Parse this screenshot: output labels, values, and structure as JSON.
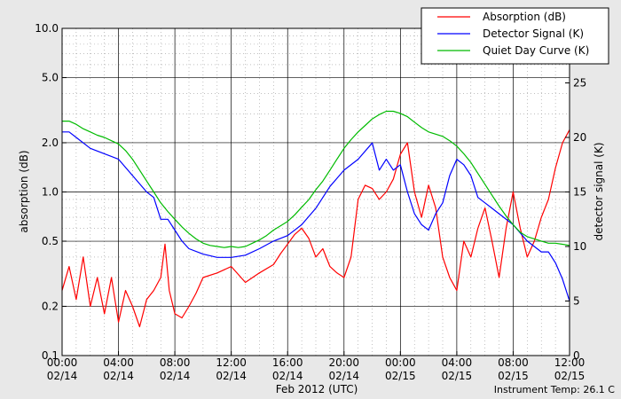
{
  "chart_data": {
    "type": "line",
    "xlabel": "Feb 2012 (UTC)",
    "ylabel_left": "absorption (dB)",
    "ylabel_right": "detector signal (K)",
    "left_scale": "log",
    "left_ylim": [
      0.1,
      10.0
    ],
    "right_ylim": [
      0,
      30
    ],
    "left_ticks": [
      "0.1",
      "0.2",
      "0.5",
      "1.0",
      "2.0",
      "5.0",
      "10.0"
    ],
    "left_tick_values": [
      0.1,
      0.2,
      0.5,
      1.0,
      2.0,
      5.0,
      10.0
    ],
    "right_ticks": [
      "0",
      "5",
      "10",
      "15",
      "20",
      "25"
    ],
    "right_tick_values": [
      0,
      5,
      10,
      15,
      20,
      25
    ],
    "x_range_hours": [
      0,
      36
    ],
    "x_ticks": [
      {
        "hour": 0,
        "time": "00:00",
        "date": "02/14"
      },
      {
        "hour": 4,
        "time": "04:00",
        "date": "02/14"
      },
      {
        "hour": 8,
        "time": "08:00",
        "date": "02/14"
      },
      {
        "hour": 12,
        "time": "12:00",
        "date": "02/14"
      },
      {
        "hour": 16,
        "time": "16:00",
        "date": "02/14"
      },
      {
        "hour": 20,
        "time": "20:00",
        "date": "02/14"
      },
      {
        "hour": 24,
        "time": "00:00",
        "date": "02/15"
      },
      {
        "hour": 28,
        "time": "04:00",
        "date": "02/15"
      },
      {
        "hour": 32,
        "time": "08:00",
        "date": "02/15"
      },
      {
        "hour": 36,
        "time": "12:00",
        "date": "02/15"
      }
    ],
    "grid": true,
    "legend_position": "top-right",
    "annotation": "Instrument Temp: 26.1 C",
    "series": [
      {
        "name": "Absorption (dB)",
        "color": "#ff0000",
        "axis": "left",
        "x": [
          0,
          0.5,
          1,
          1.5,
          2,
          2.5,
          3,
          3.5,
          4,
          4.5,
          5,
          5.5,
          6,
          6.5,
          7,
          7.3,
          7.6,
          8,
          8.5,
          9,
          9.5,
          10,
          11,
          12,
          13,
          14,
          15,
          15.5,
          16,
          16.5,
          17,
          17.5,
          18,
          18.5,
          19,
          19.5,
          20,
          20.5,
          21,
          21.5,
          22,
          22.5,
          23,
          23.5,
          24,
          24.5,
          25,
          25.5,
          26,
          26.5,
          27,
          27.5,
          28,
          28.5,
          29,
          29.5,
          30,
          30.5,
          31,
          31.5,
          32,
          32.5,
          33,
          33.5,
          34,
          34.5,
          35,
          35.5,
          36
        ],
        "y": [
          0.25,
          0.35,
          0.22,
          0.4,
          0.2,
          0.3,
          0.18,
          0.3,
          0.16,
          0.25,
          0.2,
          0.15,
          0.22,
          0.25,
          0.3,
          0.48,
          0.25,
          0.18,
          0.17,
          0.2,
          0.24,
          0.3,
          0.32,
          0.35,
          0.28,
          0.32,
          0.36,
          0.42,
          0.48,
          0.55,
          0.6,
          0.52,
          0.4,
          0.45,
          0.35,
          0.32,
          0.3,
          0.4,
          0.9,
          1.1,
          1.05,
          0.9,
          1.0,
          1.2,
          1.7,
          2.0,
          1.0,
          0.7,
          1.1,
          0.8,
          0.4,
          0.3,
          0.25,
          0.5,
          0.4,
          0.6,
          0.8,
          0.5,
          0.3,
          0.6,
          1.0,
          0.6,
          0.4,
          0.5,
          0.7,
          0.9,
          1.4,
          2.0,
          2.4
        ]
      },
      {
        "name": "Detector Signal (K)",
        "color": "#0000ff",
        "axis": "right",
        "x": [
          0,
          0.5,
          1,
          2,
          3,
          4,
          5,
          6,
          6.5,
          7,
          7.5,
          8,
          8.5,
          9,
          10,
          11,
          12,
          13,
          14,
          15,
          16,
          17,
          18,
          19,
          20,
          21,
          22,
          22.5,
          23,
          23.5,
          24,
          24.5,
          25,
          25.5,
          26,
          26.5,
          27,
          27.5,
          28,
          28.5,
          29,
          29.5,
          30,
          30.5,
          31,
          32,
          33,
          34,
          34.5,
          35,
          35.5,
          36
        ],
        "y": [
          20.5,
          20.5,
          20,
          19,
          18.5,
          18,
          16.5,
          15,
          14.5,
          12.5,
          12.5,
          11.5,
          10.5,
          9.8,
          9.3,
          9.0,
          9.0,
          9.2,
          9.8,
          10.5,
          11,
          12,
          13.5,
          15.5,
          17,
          18,
          19.5,
          17,
          18,
          17,
          17.5,
          15,
          13,
          12,
          11.5,
          13,
          14,
          16.5,
          18,
          17.5,
          16.5,
          14.5,
          14,
          13.5,
          13,
          12,
          10.5,
          9.5,
          9.5,
          8.5,
          7,
          5
        ]
      },
      {
        "name": "Quiet Day Curve (K)",
        "color": "#00bb00",
        "axis": "right",
        "x": [
          0,
          0.5,
          1,
          1.5,
          2,
          2.5,
          3,
          3.5,
          4,
          4.5,
          5,
          5.5,
          6,
          6.5,
          7,
          7.5,
          8,
          8.5,
          9,
          9.5,
          10,
          10.5,
          11,
          11.5,
          12,
          12.5,
          13,
          13.5,
          14,
          14.5,
          15,
          15.5,
          16,
          16.5,
          17,
          17.5,
          18,
          18.5,
          19,
          19.5,
          20,
          20.5,
          21,
          21.5,
          22,
          22.5,
          23,
          23.5,
          24,
          24.5,
          25,
          25.5,
          26,
          26.5,
          27,
          27.5,
          28,
          28.5,
          29,
          29.5,
          30,
          30.5,
          31,
          31.5,
          32,
          32.5,
          33,
          33.5,
          34,
          34.5,
          35,
          35.5,
          36
        ],
        "y": [
          21.5,
          21.5,
          21.2,
          20.8,
          20.5,
          20.2,
          20.0,
          19.7,
          19.4,
          18.8,
          18.0,
          17.0,
          16.0,
          15.0,
          14.0,
          13.2,
          12.5,
          11.8,
          11.2,
          10.7,
          10.3,
          10.1,
          10.0,
          9.9,
          10.0,
          9.9,
          10.0,
          10.3,
          10.6,
          11.0,
          11.5,
          11.9,
          12.3,
          12.9,
          13.6,
          14.3,
          15.2,
          16.0,
          17.0,
          18.0,
          19.0,
          19.8,
          20.5,
          21.1,
          21.7,
          22.1,
          22.4,
          22.4,
          22.2,
          21.9,
          21.4,
          20.9,
          20.5,
          20.3,
          20.1,
          19.7,
          19.2,
          18.5,
          17.7,
          16.7,
          15.7,
          14.7,
          13.7,
          12.8,
          12.0,
          11.3,
          10.9,
          10.7,
          10.5,
          10.3,
          10.3,
          10.2,
          10.1
        ]
      }
    ]
  }
}
